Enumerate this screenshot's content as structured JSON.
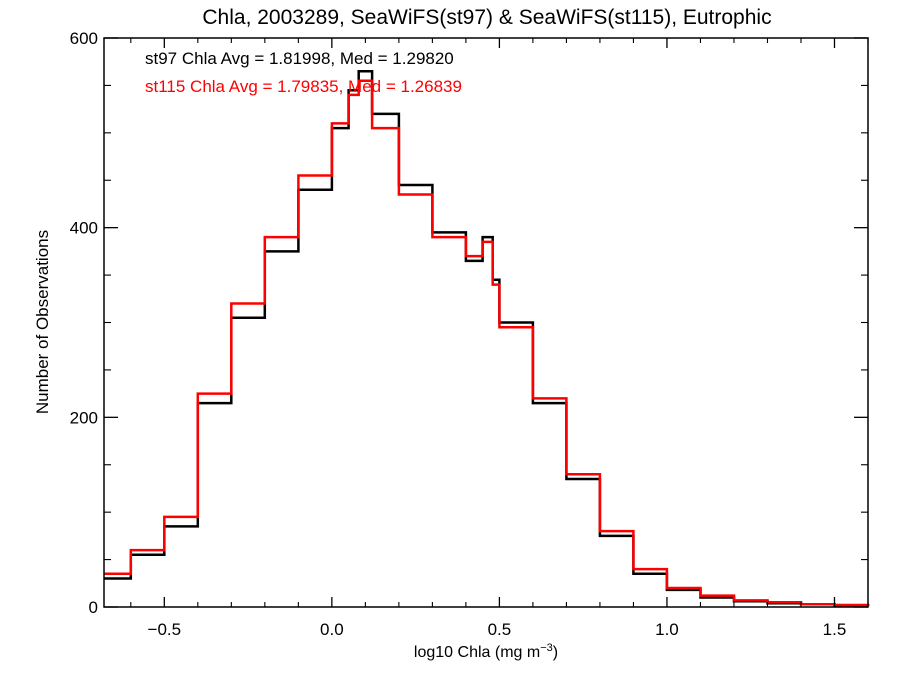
{
  "chart_data": {
    "type": "line",
    "style": "step histogram",
    "title": "Chla, 2003289, SeaWiFS(st97) & SeaWiFS(st115), Eutrophic",
    "xlabel_main": "log10 Chla (mg m",
    "xlabel_sup": "−3",
    "xlabel_tail": ")",
    "ylabel": "Number of Observations",
    "xlim": [
      -0.68,
      1.6
    ],
    "ylim": [
      0,
      600
    ],
    "x_ticks": [
      -0.5,
      0.0,
      0.5,
      1.0,
      1.5
    ],
    "x_tick_labels": [
      "−0.5",
      "0.0",
      "0.5",
      "1.0",
      "1.5"
    ],
    "y_ticks": [
      0,
      200,
      400,
      600
    ],
    "y_tick_labels": [
      "0",
      "200",
      "400",
      "600"
    ],
    "annotations": [
      {
        "text": "st97 Chla Avg = 1.81998, Med = 1.29820",
        "color": "#000000"
      },
      {
        "text": "st115 Chla Avg = 1.79835, Med = 1.26839",
        "color": "#ff0000"
      }
    ],
    "series": [
      {
        "color": "#000000",
        "x": [
          -0.68,
          -0.6,
          -0.5,
          -0.4,
          -0.3,
          -0.2,
          -0.1,
          0.0,
          0.05,
          0.08,
          0.12,
          0.2,
          0.3,
          0.4,
          0.45,
          0.48,
          0.5,
          0.6,
          0.7,
          0.8,
          0.9,
          1.0,
          1.1,
          1.2,
          1.3,
          1.4,
          1.5,
          1.6
        ],
        "y": [
          30,
          55,
          85,
          215,
          305,
          375,
          440,
          505,
          545,
          565,
          520,
          445,
          395,
          365,
          390,
          345,
          300,
          215,
          135,
          75,
          35,
          18,
          10,
          6,
          4,
          3,
          2,
          1
        ]
      },
      {
        "color": "#ff0000",
        "x": [
          -0.68,
          -0.6,
          -0.5,
          -0.4,
          -0.3,
          -0.2,
          -0.1,
          0.0,
          0.05,
          0.08,
          0.12,
          0.2,
          0.3,
          0.4,
          0.45,
          0.48,
          0.5,
          0.6,
          0.7,
          0.8,
          0.9,
          1.0,
          1.1,
          1.2,
          1.3,
          1.4,
          1.5,
          1.6
        ],
        "y": [
          35,
          60,
          95,
          225,
          320,
          390,
          455,
          510,
          540,
          555,
          505,
          435,
          390,
          370,
          385,
          340,
          295,
          220,
          140,
          80,
          40,
          20,
          12,
          7,
          5,
          3,
          2,
          1
        ]
      }
    ]
  }
}
